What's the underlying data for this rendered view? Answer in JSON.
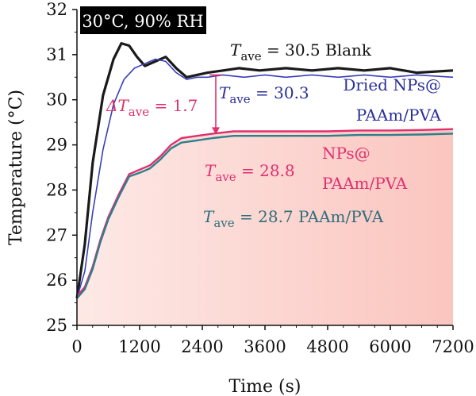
{
  "chart_data": {
    "type": "line",
    "condition": "30°C, 90% RH",
    "xlabel": "Time (s)",
    "ylabel": "Temperature (°C)",
    "xlim": [
      0,
      7200
    ],
    "ylim": [
      25,
      32
    ],
    "xticks": [
      0,
      1200,
      2400,
      3600,
      4800,
      6000,
      7200
    ],
    "yticks": [
      25,
      26,
      27,
      28,
      29,
      30,
      31,
      32
    ],
    "series": [
      {
        "name": "Blank",
        "color": "#1a1a1a",
        "points": [
          [
            0,
            25.6
          ],
          [
            150,
            26.8
          ],
          [
            300,
            28.6
          ],
          [
            500,
            30.1
          ],
          [
            700,
            30.9
          ],
          [
            850,
            31.25
          ],
          [
            1000,
            31.2
          ],
          [
            1150,
            30.95
          ],
          [
            1300,
            30.75
          ],
          [
            1500,
            30.85
          ],
          [
            1700,
            30.95
          ],
          [
            1900,
            30.7
          ],
          [
            2100,
            30.5
          ],
          [
            2300,
            30.55
          ],
          [
            2500,
            30.6
          ],
          [
            2800,
            30.65
          ],
          [
            3100,
            30.7
          ],
          [
            3500,
            30.65
          ],
          [
            4000,
            30.7
          ],
          [
            4500,
            30.65
          ],
          [
            5000,
            30.7
          ],
          [
            5500,
            30.65
          ],
          [
            6000,
            30.7
          ],
          [
            6500,
            30.6
          ],
          [
            7200,
            30.65
          ]
        ]
      },
      {
        "name": "Dried NPs@ PAAm/PVA",
        "color": "#3a3fb8",
        "points": [
          [
            0,
            25.6
          ],
          [
            150,
            26.2
          ],
          [
            300,
            27.5
          ],
          [
            500,
            28.9
          ],
          [
            700,
            29.9
          ],
          [
            900,
            30.45
          ],
          [
            1100,
            30.7
          ],
          [
            1300,
            30.8
          ],
          [
            1500,
            30.9
          ],
          [
            1700,
            30.85
          ],
          [
            1900,
            30.6
          ],
          [
            2100,
            30.45
          ],
          [
            2300,
            30.5
          ],
          [
            2500,
            30.5
          ],
          [
            2800,
            30.55
          ],
          [
            3200,
            30.5
          ],
          [
            3600,
            30.55
          ],
          [
            4000,
            30.5
          ],
          [
            4500,
            30.55
          ],
          [
            5000,
            30.5
          ],
          [
            5500,
            30.55
          ],
          [
            6000,
            30.5
          ],
          [
            6500,
            30.55
          ],
          [
            7200,
            30.5
          ]
        ]
      },
      {
        "name": "NPs@ PAAm/PVA",
        "color": "#e0306e",
        "points": [
          [
            0,
            25.65
          ],
          [
            150,
            25.85
          ],
          [
            300,
            26.3
          ],
          [
            450,
            26.9
          ],
          [
            600,
            27.4
          ],
          [
            800,
            27.9
          ],
          [
            1000,
            28.35
          ],
          [
            1200,
            28.45
          ],
          [
            1400,
            28.55
          ],
          [
            1600,
            28.75
          ],
          [
            1800,
            29.0
          ],
          [
            2000,
            29.15
          ],
          [
            2300,
            29.2
          ],
          [
            2600,
            29.25
          ],
          [
            3000,
            29.3
          ],
          [
            3600,
            29.3
          ],
          [
            4200,
            29.3
          ],
          [
            4800,
            29.3
          ],
          [
            5400,
            29.32
          ],
          [
            6000,
            29.32
          ],
          [
            6600,
            29.33
          ],
          [
            7200,
            29.35
          ]
        ]
      },
      {
        "name": "PAAm/PVA",
        "color": "#2e7f8c",
        "points": [
          [
            0,
            25.6
          ],
          [
            150,
            25.8
          ],
          [
            300,
            26.25
          ],
          [
            450,
            26.85
          ],
          [
            600,
            27.35
          ],
          [
            800,
            27.85
          ],
          [
            1000,
            28.3
          ],
          [
            1200,
            28.38
          ],
          [
            1400,
            28.48
          ],
          [
            1600,
            28.68
          ],
          [
            1800,
            28.92
          ],
          [
            2000,
            29.05
          ],
          [
            2300,
            29.1
          ],
          [
            2600,
            29.15
          ],
          [
            3000,
            29.2
          ],
          [
            3600,
            29.2
          ],
          [
            4200,
            29.2
          ],
          [
            4800,
            29.2
          ],
          [
            5400,
            29.22
          ],
          [
            6000,
            29.22
          ],
          [
            6600,
            29.23
          ],
          [
            7200,
            29.25
          ]
        ]
      }
    ],
    "labels": {
      "blank": {
        "prefix": "T",
        "sub": "ave",
        "text": " = 30.5  Blank"
      },
      "dried": {
        "prefix": "T",
        "sub": "ave",
        "text": " = 30.3",
        "name_line1": "Dried NPs@",
        "name_line2": "PAAm/PVA"
      },
      "delta": {
        "prefix": "ΔT",
        "sub": "ave",
        "text": " = 1.7"
      },
      "nps": {
        "prefix": "T",
        "sub": "ave",
        "text": " = 28.8",
        "name_line1": "NPs@",
        "name_line2": "PAAm/PVA"
      },
      "paam": {
        "prefix": "T",
        "sub": "ave",
        "text": " = 28.7 PAAm/PVA"
      }
    },
    "fill_gradient": [
      "#fde9e6",
      "#fbc5bf"
    ],
    "grid": false
  }
}
